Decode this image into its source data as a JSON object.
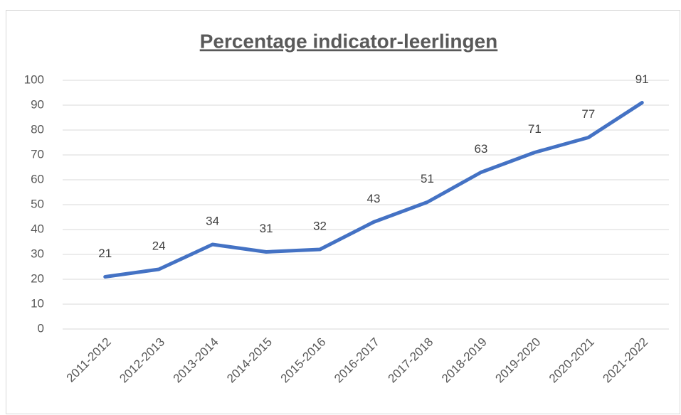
{
  "chart_data": {
    "type": "line",
    "title": "Percentage indicator-leerlingen",
    "categories": [
      "2011-2012",
      "2012-2013",
      "2013-2014",
      "2014-2015",
      "2015-2016",
      "2016-2017",
      "2017-2018",
      "2018-2019",
      "2019-2020",
      "2020-2021",
      "2021-2022"
    ],
    "values": [
      21,
      24,
      34,
      31,
      32,
      43,
      51,
      63,
      71,
      77,
      91
    ],
    "color": "#4472c4",
    "ylim": [
      0,
      100
    ],
    "yticks": [
      0,
      10,
      20,
      30,
      40,
      50,
      60,
      70,
      80,
      90,
      100
    ],
    "grid": true
  }
}
